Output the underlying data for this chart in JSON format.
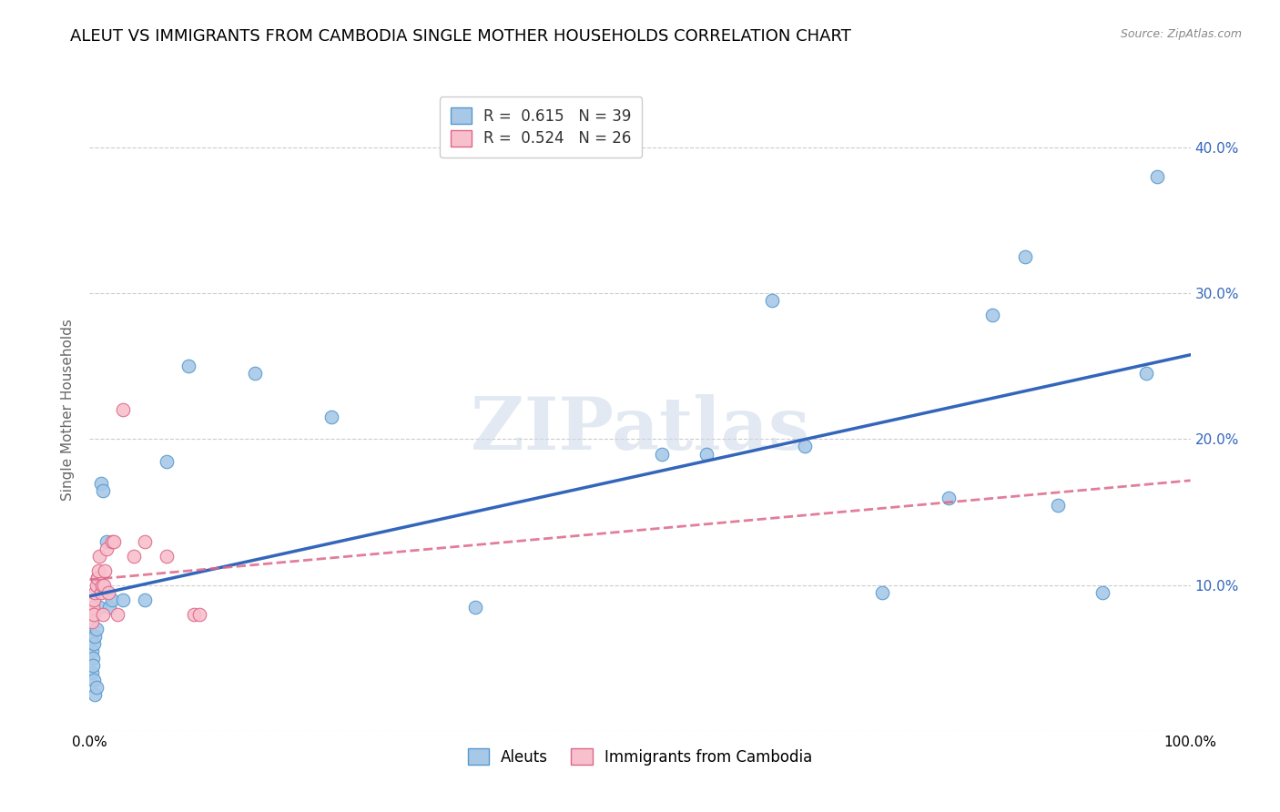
{
  "title": "ALEUT VS IMMIGRANTS FROM CAMBODIA SINGLE MOTHER HOUSEHOLDS CORRELATION CHART",
  "source": "Source: ZipAtlas.com",
  "ylabel": "Single Mother Households",
  "xlim": [
    0,
    1.0
  ],
  "ylim": [
    0,
    0.44
  ],
  "x_ticks": [
    0.0,
    0.1,
    0.2,
    0.3,
    0.4,
    0.5,
    0.6,
    0.7,
    0.8,
    0.9,
    1.0
  ],
  "x_tick_labels": [
    "0.0%",
    "",
    "",
    "",
    "",
    "",
    "",
    "",
    "",
    "",
    "100.0%"
  ],
  "y_ticks": [
    0.0,
    0.1,
    0.2,
    0.3,
    0.4
  ],
  "y_tick_labels_right": [
    "",
    "10.0%",
    "20.0%",
    "30.0%",
    "40.0%"
  ],
  "blue_color": "#a8c8e8",
  "blue_edge_color": "#5599cc",
  "blue_line_color": "#3366bb",
  "pink_color": "#f8c0cc",
  "pink_edge_color": "#dd6688",
  "pink_line_color": "#dd6688",
  "background_color": "#ffffff",
  "grid_color": "#cccccc",
  "title_fontsize": 13,
  "axis_label_fontsize": 11,
  "tick_fontsize": 11,
  "watermark": "ZIPatlas",
  "aleuts_x": [
    0.001,
    0.001,
    0.002,
    0.002,
    0.003,
    0.003,
    0.004,
    0.004,
    0.005,
    0.005,
    0.006,
    0.006,
    0.007,
    0.008,
    0.009,
    0.01,
    0.012,
    0.015,
    0.018,
    0.02,
    0.03,
    0.05,
    0.07,
    0.09,
    0.15,
    0.22,
    0.35,
    0.52,
    0.56,
    0.62,
    0.65,
    0.72,
    0.78,
    0.82,
    0.85,
    0.88,
    0.92,
    0.96,
    0.97
  ],
  "aleuts_y": [
    0.075,
    0.065,
    0.055,
    0.04,
    0.05,
    0.045,
    0.06,
    0.035,
    0.065,
    0.025,
    0.03,
    0.07,
    0.105,
    0.1,
    0.085,
    0.17,
    0.165,
    0.13,
    0.085,
    0.09,
    0.09,
    0.09,
    0.185,
    0.25,
    0.245,
    0.215,
    0.085,
    0.19,
    0.19,
    0.295,
    0.195,
    0.095,
    0.16,
    0.285,
    0.325,
    0.155,
    0.095,
    0.245,
    0.38
  ],
  "cambodia_x": [
    0.001,
    0.002,
    0.003,
    0.004,
    0.004,
    0.005,
    0.006,
    0.007,
    0.008,
    0.009,
    0.01,
    0.011,
    0.012,
    0.013,
    0.014,
    0.015,
    0.017,
    0.02,
    0.022,
    0.025,
    0.03,
    0.04,
    0.05,
    0.07,
    0.095,
    0.1
  ],
  "cambodia_y": [
    0.08,
    0.075,
    0.085,
    0.08,
    0.09,
    0.095,
    0.1,
    0.105,
    0.11,
    0.12,
    0.095,
    0.1,
    0.08,
    0.1,
    0.11,
    0.125,
    0.095,
    0.13,
    0.13,
    0.08,
    0.22,
    0.12,
    0.13,
    0.12,
    0.08,
    0.08
  ]
}
